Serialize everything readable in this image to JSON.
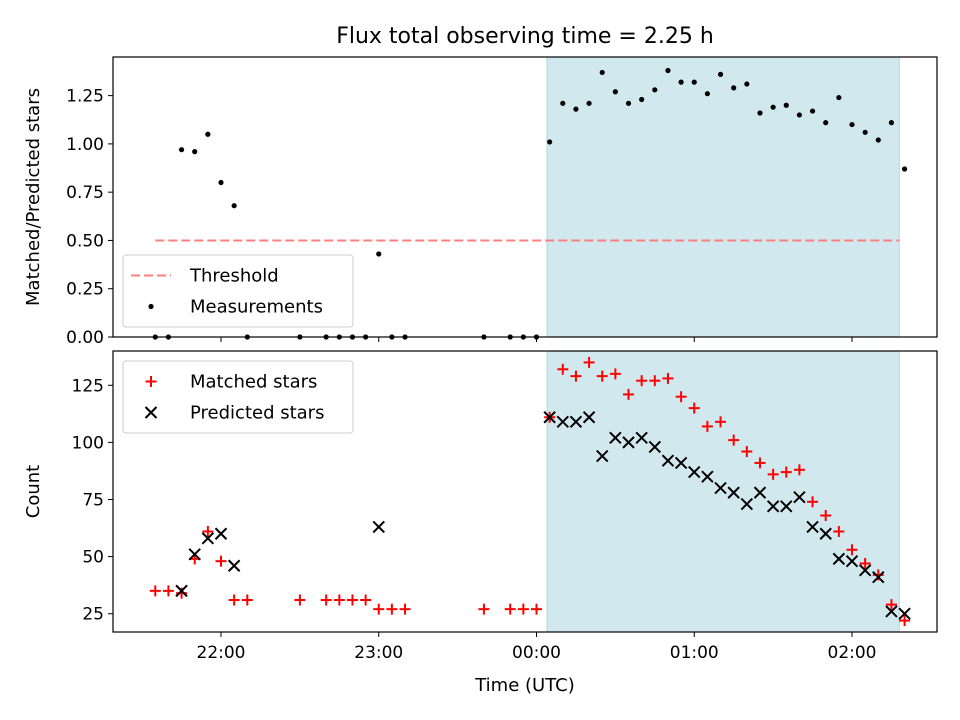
{
  "chart_data": {
    "title": "Flux total observing time = 2.25 h",
    "xlabel": "Time (UTC)",
    "x_ticks": [
      "22:00",
      "23:00",
      "00:00",
      "01:00",
      "02:00"
    ],
    "shaded_region": {
      "start": "00:04",
      "end": "02:18",
      "color": "#d1e8ef"
    },
    "panels": [
      {
        "type": "scatter",
        "ylabel": "Matched/Predicted stars",
        "ylim": [
          0,
          1.45
        ],
        "yticks": [
          "0.00",
          "0.25",
          "0.50",
          "0.75",
          "1.00",
          "1.25"
        ],
        "legend_position": "lower-left",
        "threshold": {
          "name": "Threshold",
          "value": 0.5,
          "color": "#ff7f7f",
          "x_range": [
            "21:35",
            "02:18"
          ]
        },
        "series": [
          {
            "name": "Measurements",
            "color": "#000000",
            "points": [
              [
                "21:35",
                0.0
              ],
              [
                "21:40",
                0.0
              ],
              [
                "21:45",
                0.97
              ],
              [
                "21:50",
                0.96
              ],
              [
                "21:55",
                1.05
              ],
              [
                "22:00",
                0.8
              ],
              [
                "22:05",
                0.68
              ],
              [
                "22:10",
                0.0
              ],
              [
                "22:30",
                0.0
              ],
              [
                "22:40",
                0.0
              ],
              [
                "22:45",
                0.0
              ],
              [
                "22:50",
                0.0
              ],
              [
                "22:55",
                0.0
              ],
              [
                "23:00",
                0.43
              ],
              [
                "23:05",
                0.0
              ],
              [
                "23:10",
                0.0
              ],
              [
                "23:40",
                0.0
              ],
              [
                "23:50",
                0.0
              ],
              [
                "23:55",
                0.0
              ],
              [
                "00:00",
                0.0
              ],
              [
                "00:05",
                1.01
              ],
              [
                "00:10",
                1.21
              ],
              [
                "00:15",
                1.18
              ],
              [
                "00:20",
                1.21
              ],
              [
                "00:25",
                1.37
              ],
              [
                "00:30",
                1.27
              ],
              [
                "00:35",
                1.21
              ],
              [
                "00:40",
                1.23
              ],
              [
                "00:45",
                1.28
              ],
              [
                "00:50",
                1.38
              ],
              [
                "00:55",
                1.32
              ],
              [
                "01:00",
                1.32
              ],
              [
                "01:05",
                1.26
              ],
              [
                "01:10",
                1.36
              ],
              [
                "01:15",
                1.29
              ],
              [
                "01:20",
                1.31
              ],
              [
                "01:25",
                1.16
              ],
              [
                "01:30",
                1.19
              ],
              [
                "01:35",
                1.2
              ],
              [
                "01:40",
                1.15
              ],
              [
                "01:45",
                1.17
              ],
              [
                "01:50",
                1.11
              ],
              [
                "01:55",
                1.24
              ],
              [
                "02:00",
                1.1
              ],
              [
                "02:05",
                1.06
              ],
              [
                "02:10",
                1.02
              ],
              [
                "02:15",
                1.11
              ],
              [
                "02:20",
                0.87
              ]
            ]
          }
        ]
      },
      {
        "type": "scatter",
        "ylabel": "Count",
        "ylim": [
          17,
          140
        ],
        "yticks": [
          "25",
          "50",
          "75",
          "100",
          "125"
        ],
        "legend_position": "upper-left",
        "series": [
          {
            "name": "Matched stars",
            "marker": "plus",
            "color": "#ff0000",
            "points": [
              [
                "21:35",
                35
              ],
              [
                "21:40",
                35
              ],
              [
                "21:45",
                34
              ],
              [
                "21:50",
                49
              ],
              [
                "21:55",
                61
              ],
              [
                "22:00",
                48
              ],
              [
                "22:05",
                31
              ],
              [
                "22:10",
                31
              ],
              [
                "22:30",
                31
              ],
              [
                "22:40",
                31
              ],
              [
                "22:45",
                31
              ],
              [
                "22:50",
                31
              ],
              [
                "22:55",
                31
              ],
              [
                "23:00",
                27
              ],
              [
                "23:05",
                27
              ],
              [
                "23:10",
                27
              ],
              [
                "23:40",
                27
              ],
              [
                "23:50",
                27
              ],
              [
                "23:55",
                27
              ],
              [
                "00:00",
                27
              ],
              [
                "00:05",
                111
              ],
              [
                "00:10",
                132
              ],
              [
                "00:15",
                129
              ],
              [
                "00:20",
                135
              ],
              [
                "00:25",
                129
              ],
              [
                "00:30",
                130
              ],
              [
                "00:35",
                121
              ],
              [
                "00:40",
                127
              ],
              [
                "00:45",
                127
              ],
              [
                "00:50",
                128
              ],
              [
                "00:55",
                120
              ],
              [
                "01:00",
                115
              ],
              [
                "01:05",
                107
              ],
              [
                "01:10",
                109
              ],
              [
                "01:15",
                101
              ],
              [
                "01:20",
                96
              ],
              [
                "01:25",
                91
              ],
              [
                "01:30",
                86
              ],
              [
                "01:35",
                87
              ],
              [
                "01:40",
                88
              ],
              [
                "01:45",
                74
              ],
              [
                "01:50",
                68
              ],
              [
                "01:55",
                61
              ],
              [
                "02:00",
                53
              ],
              [
                "02:05",
                47
              ],
              [
                "02:10",
                42
              ],
              [
                "02:15",
                29
              ],
              [
                "02:20",
                22
              ]
            ]
          },
          {
            "name": "Predicted stars",
            "marker": "x",
            "color": "#000000",
            "points": [
              [
                "21:45",
                35
              ],
              [
                "21:50",
                51
              ],
              [
                "21:55",
                58
              ],
              [
                "22:00",
                60
              ],
              [
                "22:05",
                46
              ],
              [
                "23:00",
                63
              ],
              [
                "00:05",
                111
              ],
              [
                "00:10",
                109
              ],
              [
                "00:15",
                109
              ],
              [
                "00:20",
                111
              ],
              [
                "00:25",
                94
              ],
              [
                "00:30",
                102
              ],
              [
                "00:35",
                100
              ],
              [
                "00:40",
                102
              ],
              [
                "00:45",
                98
              ],
              [
                "00:50",
                92
              ],
              [
                "00:55",
                91
              ],
              [
                "01:00",
                87
              ],
              [
                "01:05",
                85
              ],
              [
                "01:10",
                80
              ],
              [
                "01:15",
                78
              ],
              [
                "01:20",
                73
              ],
              [
                "01:25",
                78
              ],
              [
                "01:30",
                72
              ],
              [
                "01:35",
                72
              ],
              [
                "01:40",
                76
              ],
              [
                "01:45",
                63
              ],
              [
                "01:50",
                60
              ],
              [
                "01:55",
                49
              ],
              [
                "02:00",
                48
              ],
              [
                "02:05",
                44
              ],
              [
                "02:10",
                41
              ],
              [
                "02:15",
                26
              ],
              [
                "02:20",
                25
              ]
            ]
          }
        ]
      }
    ]
  }
}
